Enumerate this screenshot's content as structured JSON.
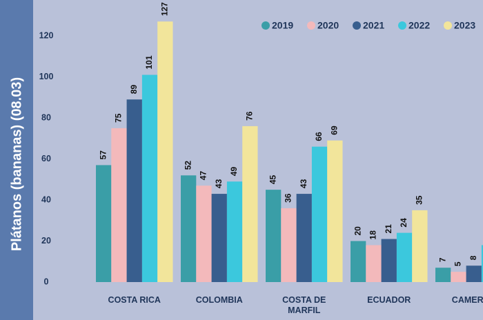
{
  "chart_data": {
    "type": "bar",
    "title": "Plátanos (bananas) (08.03)",
    "categories": [
      "COSTA RICA",
      "COLOMBIA",
      "COSTA DE MARFIL",
      "ECUADOR",
      "CAMERÚN"
    ],
    "series": [
      {
        "name": "2019",
        "color": "#3a9ea7",
        "values": [
          57,
          52,
          45,
          20,
          7
        ]
      },
      {
        "name": "2020",
        "color": "#f3b9bb",
        "values": [
          75,
          47,
          36,
          18,
          5
        ]
      },
      {
        "name": "2021",
        "color": "#385e8e",
        "values": [
          89,
          43,
          43,
          21,
          8
        ]
      },
      {
        "name": "2022",
        "color": "#3bc8dd",
        "values": [
          101,
          49,
          66,
          24,
          18
        ]
      },
      {
        "name": "2023",
        "color": "#f2e59b",
        "values": [
          127,
          76,
          69,
          35,
          null
        ]
      }
    ],
    "ylim": [
      0,
      120
    ],
    "yticks": [
      0,
      20,
      40,
      60,
      80,
      100,
      120
    ],
    "grid": false,
    "legend": "top-right"
  }
}
